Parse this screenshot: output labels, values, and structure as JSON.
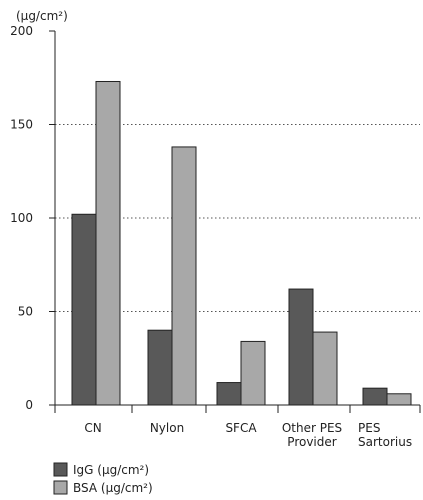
{
  "chart_data": {
    "type": "bar",
    "title": "",
    "xlabel": "",
    "ylabel": "(µg/cm²)",
    "ylim": [
      0,
      200
    ],
    "yticks": [
      "0",
      "50",
      "100",
      "150",
      "200"
    ],
    "grid": "dotted horizontal at 50, 100, 150",
    "legend_position": "bottom-left",
    "categories": [
      [
        "CN"
      ],
      [
        "Nylon"
      ],
      [
        "SFCA"
      ],
      [
        "Other PES",
        "Provider"
      ],
      [
        "PES",
        "Sartorius"
      ]
    ],
    "series": [
      {
        "name": "IgG (µg/cm²)",
        "color": "#595959",
        "values": [
          102,
          40,
          12,
          62,
          9
        ]
      },
      {
        "name": "BSA (µg/cm²)",
        "color": "#a8a8a8",
        "values": [
          173,
          138,
          34,
          39,
          6
        ]
      }
    ]
  }
}
